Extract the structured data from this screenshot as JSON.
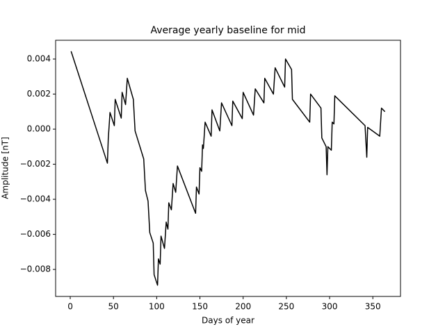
{
  "chart_data": {
    "type": "line",
    "title": "Average yearly baseline for mid",
    "x_label": "Days of year",
    "y_label": "Amplitude [nT]",
    "color": "#000000",
    "x": [
      1,
      43,
      44,
      46,
      51,
      52,
      59,
      60,
      64,
      66,
      73,
      75,
      85,
      87,
      90,
      92,
      96,
      97,
      101,
      102,
      104,
      105,
      109,
      111,
      113,
      114,
      117,
      119,
      122,
      124,
      145,
      146,
      149,
      150,
      152,
      153,
      154,
      156,
      163,
      164,
      173,
      175,
      187,
      188,
      199,
      200,
      212,
      214,
      224,
      225,
      235,
      237,
      248,
      249,
      256,
      257,
      277,
      278,
      290,
      291,
      296,
      297,
      298,
      302,
      303,
      305,
      306,
      341,
      343,
      344,
      358,
      360,
      364
    ],
    "values": [
      0.00444,
      -0.00194,
      -0.00055,
      0.00095,
      0.0002,
      0.0017,
      0.00063,
      0.0021,
      0.0014,
      0.0029,
      0.0017,
      -0.0001,
      -0.0017,
      -0.0035,
      -0.0041,
      -0.0059,
      -0.0065,
      -0.0083,
      -0.0089,
      -0.0074,
      -0.0077,
      -0.0061,
      -0.0068,
      -0.0053,
      -0.0057,
      -0.0042,
      -0.0046,
      -0.0031,
      -0.0036,
      -0.0021,
      -0.0048,
      -0.0033,
      -0.0037,
      -0.0022,
      -0.0024,
      -0.0009,
      -0.0011,
      0.0004,
      -0.0004,
      0.0011,
      -0.0001,
      0.0015,
      0.0002,
      0.0016,
      0.0006,
      0.0021,
      0.0008,
      0.0023,
      0.0015,
      0.0029,
      0.002,
      0.0035,
      0.0024,
      0.004,
      0.0034,
      0.0017,
      0.0004,
      0.002,
      0.0012,
      -0.0005,
      -0.001,
      -0.0026,
      -0.001,
      -0.0012,
      0.0004,
      0.0003,
      0.0019,
      0.0002,
      -0.0016,
      0.0001,
      -0.0004,
      0.0012,
      0.001
    ],
    "xlim": [
      -16.9,
      382
    ],
    "ylim": [
      -0.00954,
      0.00507
    ],
    "xticks": [
      0,
      50,
      100,
      150,
      200,
      250,
      300,
      350
    ],
    "yticks": [
      {
        "value": -0.008,
        "label": "−0.008"
      },
      {
        "value": -0.006,
        "label": "−0.006"
      },
      {
        "value": -0.004,
        "label": "−0.004"
      },
      {
        "value": -0.002,
        "label": "−0.002"
      },
      {
        "value": 0,
        "label": "0.000"
      },
      0.002,
      0.004
    ]
  }
}
